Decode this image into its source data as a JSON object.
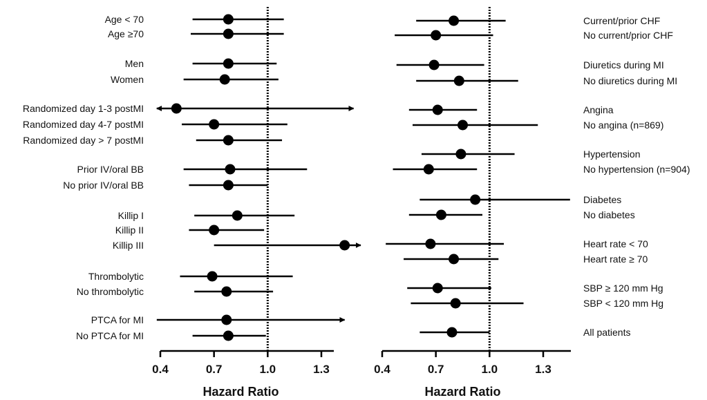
{
  "chart_data": [
    {
      "type": "forest",
      "xlabel": "Hazard Ratio",
      "xlim": [
        0.4,
        1.3
      ],
      "xticks": [
        "0.4",
        "0.7",
        "1.0",
        "1.3"
      ],
      "reference_line": 1.0,
      "rows": [
        {
          "label": "Age < 70",
          "hr": 0.78,
          "lo": 0.58,
          "hi": 1.09
        },
        {
          "label": "Age ≥70",
          "hr": 0.78,
          "lo": 0.57,
          "hi": 1.09
        },
        {
          "label": "Men",
          "hr": 0.78,
          "lo": 0.58,
          "hi": 1.05
        },
        {
          "label": "Women",
          "hr": 0.76,
          "lo": 0.53,
          "hi": 1.06
        },
        {
          "label": "Randomized day 1-3 postMI",
          "hr": 0.49,
          "lo": 0.38,
          "hi": 1.48,
          "lo_arrow": true,
          "hi_arrow": true
        },
        {
          "label": "Randomized day 4-7 postMI",
          "hr": 0.7,
          "lo": 0.52,
          "hi": 1.11
        },
        {
          "label": "Randomized day > 7 postMI",
          "hr": 0.78,
          "lo": 0.6,
          "hi": 1.08
        },
        {
          "label": "Prior IV/oral BB",
          "hr": 0.79,
          "lo": 0.53,
          "hi": 1.22
        },
        {
          "label": "No prior IV/oral BB",
          "hr": 0.78,
          "lo": 0.56,
          "hi": 1.0
        },
        {
          "label": "Killip I",
          "hr": 0.83,
          "lo": 0.59,
          "hi": 1.15
        },
        {
          "label": "Killip II",
          "hr": 0.7,
          "lo": 0.56,
          "hi": 0.98
        },
        {
          "label": "Killip III",
          "hr": 1.43,
          "lo": 0.7,
          "hi": 1.52,
          "hi_arrow": true
        },
        {
          "label": "Thrombolytic",
          "hr": 0.69,
          "lo": 0.51,
          "hi": 1.14
        },
        {
          "label": "No thrombolytic",
          "hr": 0.77,
          "lo": 0.59,
          "hi": 1.03
        },
        {
          "label": "PTCA for MI",
          "hr": 0.77,
          "lo": 0.38,
          "hi": 1.43,
          "hi_arrow": true
        },
        {
          "label": "No PTCA for MI",
          "hr": 0.78,
          "lo": 0.58,
          "hi": 0.99
        }
      ]
    },
    {
      "type": "forest",
      "xlabel": "Hazard Ratio",
      "xlim": [
        0.4,
        1.3
      ],
      "xticks": [
        "0.4",
        "0.7",
        "1.0",
        "1.3"
      ],
      "reference_line": 1.0,
      "rows": [
        {
          "label": "Current/prior CHF",
          "hr": 0.8,
          "lo": 0.59,
          "hi": 1.09
        },
        {
          "label": "No current/prior CHF",
          "hr": 0.7,
          "lo": 0.47,
          "hi": 1.02
        },
        {
          "label": "Diuretics during MI",
          "hr": 0.69,
          "lo": 0.48,
          "hi": 0.97
        },
        {
          "label": "No diuretics during MI",
          "hr": 0.83,
          "lo": 0.59,
          "hi": 1.16
        },
        {
          "label": "Angina",
          "hr": 0.71,
          "lo": 0.55,
          "hi": 0.93
        },
        {
          "label": "No angina (n=869)",
          "hr": 0.85,
          "lo": 0.57,
          "hi": 1.27
        },
        {
          "label": "Hypertension",
          "hr": 0.84,
          "lo": 0.62,
          "hi": 1.14
        },
        {
          "label": "No hypertension (n=904)",
          "hr": 0.66,
          "lo": 0.46,
          "hi": 0.93
        },
        {
          "label": "Diabetes",
          "hr": 0.92,
          "lo": 0.61,
          "hi": 1.45
        },
        {
          "label": "No diabetes",
          "hr": 0.73,
          "lo": 0.55,
          "hi": 0.96
        },
        {
          "label": "Heart rate < 70",
          "hr": 0.67,
          "lo": 0.42,
          "hi": 1.08
        },
        {
          "label": "Heart rate ≥ 70",
          "hr": 0.8,
          "lo": 0.52,
          "hi": 1.05
        },
        {
          "label": "SBP ≥ 120 mm Hg",
          "hr": 0.71,
          "lo": 0.54,
          "hi": 1.01
        },
        {
          "label": "SBP < 120 mm Hg",
          "hr": 0.81,
          "lo": 0.56,
          "hi": 1.19
        },
        {
          "label": "All patients",
          "hr": 0.79,
          "lo": 0.61,
          "hi": 1.0
        }
      ]
    }
  ]
}
